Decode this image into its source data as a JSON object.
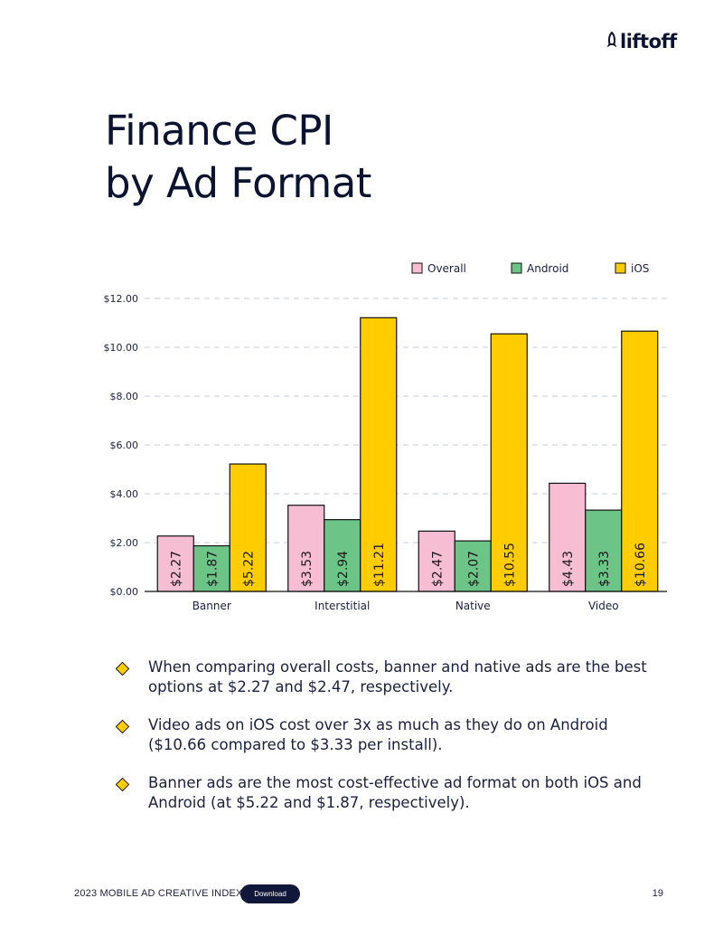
{
  "brand": {
    "name": "liftoff"
  },
  "title": {
    "line1": "Finance CPI",
    "line2": "by Ad Format"
  },
  "chart_data": {
    "type": "bar",
    "title": "Finance CPI by Ad Format",
    "categories": [
      "Banner",
      "Interstitial",
      "Native",
      "Video"
    ],
    "series": [
      {
        "name": "Overall",
        "color": "#f7bdd3",
        "values": [
          2.27,
          3.53,
          2.47,
          4.43
        ],
        "labels": [
          "$2.27",
          "$3.53",
          "$2.47",
          "$4.43"
        ]
      },
      {
        "name": "Android",
        "color": "#6cc486",
        "values": [
          1.87,
          2.94,
          2.07,
          3.33
        ],
        "labels": [
          "$1.87",
          "$2.94",
          "$2.07",
          "$3.33"
        ]
      },
      {
        "name": "iOS",
        "color": "#ffcc00",
        "values": [
          5.22,
          11.21,
          10.55,
          10.66
        ],
        "labels": [
          "$5.22",
          "$11.21",
          "$10.55",
          "$10.66"
        ]
      }
    ],
    "yticks": [
      0,
      2,
      4,
      6,
      8,
      10,
      12
    ],
    "ytick_labels": [
      "$0.00",
      "$2.00",
      "$4.00",
      "$6.00",
      "$8.00",
      "$10.00",
      "$12.00"
    ],
    "ylim": [
      0,
      12
    ],
    "xlabel": "",
    "ylabel": "",
    "grid": true,
    "legend": "top-right"
  },
  "bullets": [
    "When comparing overall costs, banner and native ads are the best options at $2.27 and $2.47, respectively.",
    "Video ads on iOS cost over 3x as much as they do on Android ($10.66 compared to $3.33 per install).",
    "Banner ads are the most cost-effective ad format on both iOS and Android (at $5.22 and $1.87, respectively)."
  ],
  "footer": {
    "report": "2023 MOBILE AD CREATIVE INDEX",
    "download_label": "Download",
    "page_number": "19"
  }
}
